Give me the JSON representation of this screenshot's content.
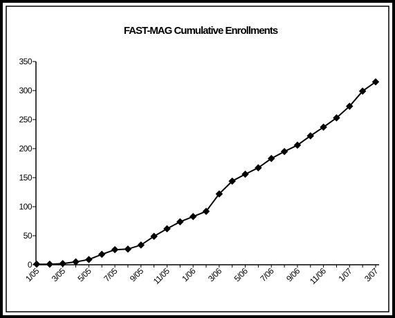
{
  "chart_data": {
    "type": "line",
    "title": "FAST-MAG Cumulative Enrollments",
    "xlabel": "",
    "ylabel": "",
    "ylim": [
      0,
      350
    ],
    "yticks": [
      0,
      50,
      100,
      150,
      200,
      250,
      300,
      350
    ],
    "grid": false,
    "legend": "none",
    "categories": [
      "1/05",
      "2/05",
      "3/05",
      "4/05",
      "5/05",
      "6/05",
      "7/05",
      "8/05",
      "9/05",
      "10/05",
      "11/05",
      "12/05",
      "1/06",
      "2/06",
      "3/06",
      "4/06",
      "5/06",
      "6/06",
      "7/06",
      "8/06",
      "9/06",
      "10/06",
      "11/06",
      "12/06",
      "1/07",
      "2/07",
      "3/07"
    ],
    "tick_labels": [
      "1/05",
      "3/05",
      "5/05",
      "7/05",
      "9/05",
      "11/05",
      "1/06",
      "3/06",
      "5/06",
      "7/06",
      "9/06",
      "11/06",
      "1/07",
      "3/07"
    ],
    "series": [
      {
        "values": [
          1,
          1,
          2,
          5,
          9,
          18,
          26,
          27,
          34,
          49,
          62,
          74,
          83,
          92,
          122,
          144,
          156,
          167,
          183,
          195,
          206,
          222,
          237,
          253,
          273,
          299,
          315
        ],
        "color": "#000000",
        "marker": "diamond"
      }
    ]
  }
}
